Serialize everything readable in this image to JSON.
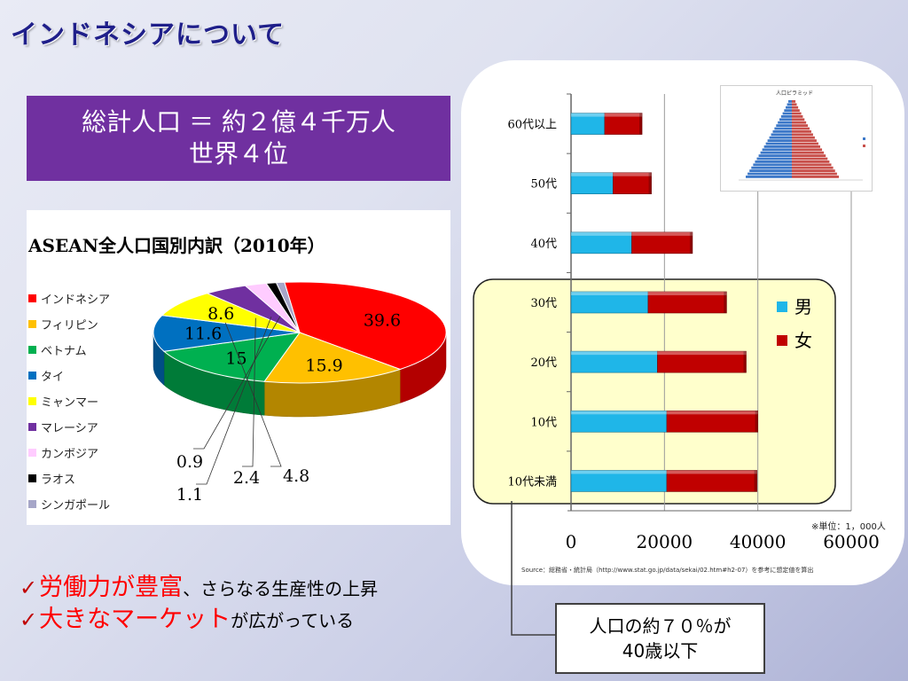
{
  "slide": {
    "title": "インドネシアについて",
    "headline_line1": "総計人口 ＝ 約２億４千万人",
    "headline_line2": "世界４位"
  },
  "pie_chart": {
    "title": "ASEAN全人口国別内訳（2010年）",
    "legend": [
      {
        "name": "インドネシア",
        "color": "#ff0000"
      },
      {
        "name": "フィリピン",
        "color": "#ffc000"
      },
      {
        "name": "ベトナム",
        "color": "#00b050"
      },
      {
        "name": "タイ",
        "color": "#0070c0"
      },
      {
        "name": "ミャンマー",
        "color": "#ffff00"
      },
      {
        "name": "マレーシア",
        "color": "#7030a0"
      },
      {
        "name": "カンボジア",
        "color": "#ffccff"
      },
      {
        "name": "ラオス",
        "color": "#000000"
      },
      {
        "name": "シンガポール",
        "color": "#a6a6c8"
      }
    ]
  },
  "bar_chart": {
    "categories": [
      "60代以上",
      "50代",
      "40代",
      "30代",
      "20代",
      "10代",
      "10代未満"
    ],
    "x_ticks": [
      "0",
      "20000",
      "40000",
      "60000"
    ],
    "legend_male": "男",
    "legend_female": "女",
    "color_male": "#1fb6e8",
    "color_female": "#c00000",
    "unit_note": "※単位：1，000人",
    "source": "Source：総務省・統計局（http://www.stat.go.jp/data/sekai/02.htm#h2-07）を参考に想定値を算出",
    "pyramid_title": "人口ピラミッド"
  },
  "callout": {
    "line1": "人口の約７０％が",
    "line2": "40歳以下"
  },
  "bullets": [
    {
      "check": "✓",
      "red": "労働力が豊富",
      "black": "、さらなる生産性の上昇"
    },
    {
      "check": "✓",
      "red": "大きなマーケット",
      "black": "が広がっている"
    }
  ],
  "chart_data": [
    {
      "type": "pie",
      "title": "ASEAN全人口国別内訳（2010年）",
      "categories": [
        "インドネシア",
        "フィリピン",
        "ベトナム",
        "タイ",
        "ミャンマー",
        "マレーシア",
        "カンボジア",
        "ラオス",
        "シンガポール"
      ],
      "values": [
        39.6,
        15.9,
        15,
        11.6,
        8.6,
        4.8,
        2.4,
        1.1,
        0.9
      ],
      "data_labels": [
        "39.6",
        "15.9",
        "15",
        "11.6",
        "8.6",
        "4.8",
        "2.4",
        "1.1",
        "0.9"
      ],
      "colors": [
        "#ff0000",
        "#ffc000",
        "#00b050",
        "#0070c0",
        "#ffff00",
        "#7030a0",
        "#ffccff",
        "#000000",
        "#a6a6c8"
      ],
      "legend_position": "left",
      "style": "3d"
    },
    {
      "type": "bar",
      "orientation": "horizontal",
      "stacked": true,
      "categories": [
        "60代以上",
        "50代",
        "40代",
        "30代",
        "20代",
        "10代",
        "10代未満"
      ],
      "series": [
        {
          "name": "男",
          "values": [
            7200,
            9000,
            13000,
            16500,
            18500,
            20500,
            20500
          ]
        },
        {
          "name": "女",
          "values": [
            8000,
            8200,
            13000,
            16800,
            19000,
            19500,
            19300
          ]
        }
      ],
      "x_ticks": [
        0,
        20000,
        40000,
        60000
      ],
      "xlim": [
        0,
        60000
      ],
      "grid": true,
      "legend_position": "right"
    }
  ]
}
